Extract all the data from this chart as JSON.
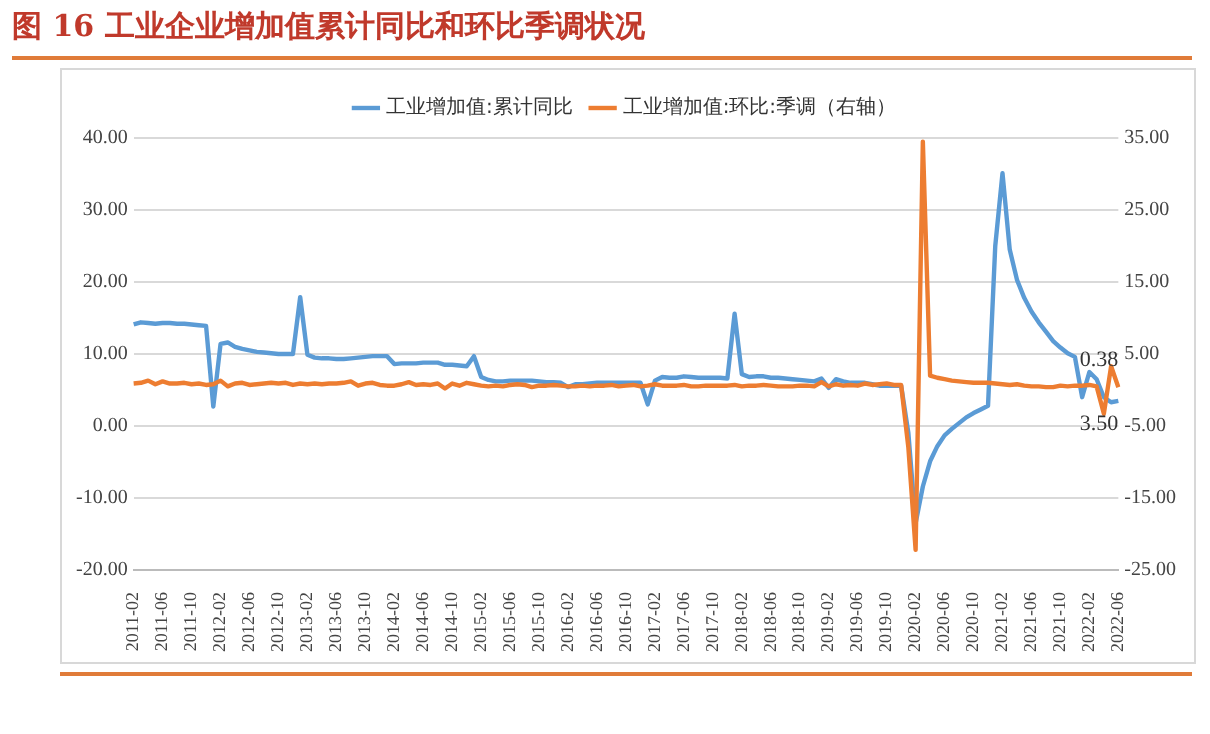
{
  "chart_data": {
    "type": "line",
    "title": "图 16 工业企业增加值累计同比和环比季调状况",
    "categories": [
      "2011-02",
      null,
      null,
      null,
      "2011-06",
      null,
      null,
      null,
      "2011-10",
      null,
      null,
      null,
      "2012-02",
      null,
      null,
      null,
      "2012-06",
      null,
      null,
      null,
      "2012-10",
      null,
      null,
      null,
      "2013-02",
      null,
      null,
      null,
      "2013-06",
      null,
      null,
      null,
      "2013-10",
      null,
      null,
      null,
      "2014-02",
      null,
      null,
      null,
      "2014-06",
      null,
      null,
      null,
      "2014-10",
      null,
      null,
      null,
      "2015-02",
      null,
      null,
      null,
      "2015-06",
      null,
      null,
      null,
      "2015-10",
      null,
      null,
      null,
      "2016-02",
      null,
      null,
      null,
      "2016-06",
      null,
      null,
      null,
      "2016-10",
      null,
      null,
      null,
      "2017-02",
      null,
      null,
      null,
      "2017-06",
      null,
      null,
      null,
      "2017-10",
      null,
      null,
      null,
      "2018-02",
      null,
      null,
      null,
      "2018-06",
      null,
      null,
      null,
      "2018-10",
      null,
      null,
      null,
      "2019-02",
      null,
      null,
      null,
      "2019-06",
      null,
      null,
      null,
      "2019-10",
      null,
      null,
      null,
      "2020-02",
      null,
      null,
      null,
      "2020-06",
      null,
      null,
      null,
      "2020-10",
      null,
      null,
      null,
      "2021-02",
      null,
      null,
      null,
      "2021-06",
      null,
      null,
      null,
      "2021-10",
      null,
      null,
      null,
      "2022-02",
      null,
      null,
      null,
      "2022-06"
    ],
    "series": [
      {
        "name": "工业增加值:累计同比",
        "color": "#5b9bd5",
        "values": [
          14.1,
          14.4,
          14.3,
          14.2,
          14.3,
          14.3,
          14.2,
          14.2,
          14.1,
          14.0,
          13.9,
          2.7,
          11.4,
          11.6,
          11.0,
          10.7,
          10.5,
          10.3,
          10.2,
          10.1,
          10.0,
          10.0,
          10.0,
          17.9,
          9.9,
          9.5,
          9.4,
          9.4,
          9.3,
          9.3,
          9.4,
          9.5,
          9.6,
          9.7,
          9.7,
          9.7,
          8.6,
          8.7,
          8.7,
          8.7,
          8.8,
          8.8,
          8.8,
          8.5,
          8.5,
          8.4,
          8.3,
          9.7,
          6.8,
          6.4,
          6.2,
          6.2,
          6.3,
          6.3,
          6.3,
          6.3,
          6.2,
          6.1,
          6.1,
          6.0,
          5.4,
          5.8,
          5.8,
          5.9,
          6.0,
          6.0,
          6.0,
          6.0,
          6.0,
          6.0,
          6.0,
          3.0,
          6.3,
          6.8,
          6.7,
          6.7,
          6.9,
          6.8,
          6.7,
          6.7,
          6.7,
          6.7,
          6.6,
          15.6,
          7.2,
          6.8,
          6.9,
          6.9,
          6.7,
          6.7,
          6.6,
          6.5,
          6.4,
          6.3,
          6.2,
          6.6,
          5.3,
          6.5,
          6.2,
          6.0,
          6.0,
          6.0,
          5.8,
          5.6,
          5.6,
          5.6,
          5.6,
          -1.0,
          -13.5,
          -8.4,
          -4.9,
          -2.8,
          -1.3,
          -0.4,
          0.4,
          1.2,
          1.8,
          2.3,
          2.8,
          25.0,
          35.1,
          24.5,
          20.3,
          17.8,
          15.9,
          14.4,
          13.1,
          11.8,
          10.9,
          10.1,
          9.6,
          4.0,
          7.5,
          6.5,
          4.0,
          3.3,
          3.5
        ],
        "value_labels": [
          null,
          null,
          null,
          null,
          null,
          null,
          null,
          null,
          null,
          null,
          null,
          null,
          null,
          null,
          null,
          null,
          null,
          null,
          null,
          null,
          null,
          null,
          null,
          null,
          null,
          null,
          null,
          null,
          null,
          null,
          null,
          null,
          null,
          null,
          null,
          null,
          null,
          null,
          null,
          null,
          null,
          null,
          null,
          null,
          null,
          null,
          null,
          null,
          null,
          null,
          null,
          null,
          null,
          null,
          null,
          null,
          null,
          null,
          null,
          null,
          null,
          null,
          null,
          null,
          null,
          null,
          null,
          null,
          null,
          null,
          null,
          null,
          null,
          null,
          null,
          null,
          null,
          null,
          null,
          null,
          null,
          null,
          null,
          null,
          null,
          null,
          null,
          null,
          null,
          null,
          null,
          null,
          null,
          null,
          null,
          null,
          null,
          null,
          null,
          null,
          null,
          null,
          null,
          null,
          null,
          null,
          null,
          null,
          null,
          null,
          null,
          null,
          null,
          null,
          null,
          null,
          null,
          null,
          null,
          null,
          null,
          null,
          null,
          null,
          null,
          null,
          null,
          null,
          null,
          null,
          null,
          null,
          null,
          null,
          null,
          null,
          "3.50"
        ]
      },
      {
        "name": "工业增加值:环比:季调（右轴）",
        "color": "#ed7d31",
        "axis": "y2",
        "values": [
          0.9,
          1.0,
          1.3,
          0.8,
          1.2,
          0.9,
          0.9,
          1.0,
          0.8,
          0.9,
          0.7,
          0.8,
          1.3,
          0.5,
          0.9,
          1.0,
          0.7,
          0.8,
          0.9,
          1.0,
          0.9,
          1.0,
          0.7,
          0.9,
          0.8,
          0.9,
          0.8,
          0.9,
          0.9,
          1.0,
          1.2,
          0.6,
          0.9,
          1.0,
          0.7,
          0.6,
          0.6,
          0.8,
          1.1,
          0.7,
          0.8,
          0.7,
          0.9,
          0.2,
          0.9,
          0.6,
          1.0,
          0.8,
          0.6,
          0.5,
          0.6,
          0.5,
          0.7,
          0.8,
          0.7,
          0.4,
          0.6,
          0.6,
          0.7,
          0.6,
          0.5,
          0.5,
          0.6,
          0.5,
          0.6,
          0.6,
          0.7,
          0.5,
          0.6,
          0.7,
          0.5,
          0.6,
          0.8,
          0.6,
          0.6,
          0.6,
          0.7,
          0.5,
          0.5,
          0.6,
          0.6,
          0.6,
          0.6,
          0.7,
          0.5,
          0.6,
          0.6,
          0.7,
          0.6,
          0.5,
          0.5,
          0.5,
          0.6,
          0.6,
          0.5,
          1.1,
          0.5,
          0.8,
          0.6,
          0.7,
          0.6,
          0.9,
          0.7,
          0.8,
          0.9,
          0.7,
          0.7,
          -8.0,
          -22.2,
          34.5,
          2.0,
          1.7,
          1.5,
          1.3,
          1.2,
          1.1,
          1.0,
          1.0,
          1.0,
          0.9,
          0.8,
          0.7,
          0.8,
          0.6,
          0.5,
          0.5,
          0.4,
          0.4,
          0.6,
          0.5,
          0.6,
          0.6,
          0.7,
          0.5,
          -3.3,
          3.3,
          0.38
        ],
        "value_labels": [
          null,
          null,
          null,
          null,
          null,
          null,
          null,
          null,
          null,
          null,
          null,
          null,
          null,
          null,
          null,
          null,
          null,
          null,
          null,
          null,
          null,
          null,
          null,
          null,
          null,
          null,
          null,
          null,
          null,
          null,
          null,
          null,
          null,
          null,
          null,
          null,
          null,
          null,
          null,
          null,
          null,
          null,
          null,
          null,
          null,
          null,
          null,
          null,
          null,
          null,
          null,
          null,
          null,
          null,
          null,
          null,
          null,
          null,
          null,
          null,
          null,
          null,
          null,
          null,
          null,
          null,
          null,
          null,
          null,
          null,
          null,
          null,
          null,
          null,
          null,
          null,
          null,
          null,
          null,
          null,
          null,
          null,
          null,
          null,
          null,
          null,
          null,
          null,
          null,
          null,
          null,
          null,
          null,
          null,
          null,
          null,
          null,
          null,
          null,
          null,
          null,
          null,
          null,
          null,
          null,
          null,
          null,
          null,
          null,
          null,
          null,
          null,
          null,
          null,
          null,
          null,
          null,
          null,
          null,
          null,
          null,
          null,
          null,
          null,
          null,
          null,
          null,
          null,
          null,
          null,
          null,
          null,
          null,
          null,
          null,
          null,
          "0.38"
        ]
      }
    ],
    "ylim": [
      -20,
      40
    ],
    "yticks": [
      {
        "value": -20,
        "label": "-20.00"
      },
      {
        "value": -10,
        "label": "-10.00"
      },
      {
        "value": 0,
        "label": "0.00"
      },
      {
        "value": 10,
        "label": "10.00"
      },
      {
        "value": 20,
        "label": "20.00"
      },
      {
        "value": 30,
        "label": "30.00"
      },
      {
        "value": 40,
        "label": "40.00"
      }
    ],
    "y2lim": [
      -25,
      35
    ],
    "y2ticks": [
      {
        "value": -25,
        "label": "-25.00"
      },
      {
        "value": -15,
        "label": "-15.00"
      },
      {
        "value": -5,
        "label": "-5.00"
      },
      {
        "value": 5,
        "label": "5.00"
      },
      {
        "value": 15,
        "label": "15.00"
      },
      {
        "value": 25,
        "label": "25.00"
      },
      {
        "value": 35,
        "label": "35.00"
      }
    ],
    "grid": "y",
    "legend": "top",
    "marker": "none",
    "line_style": "solid"
  }
}
